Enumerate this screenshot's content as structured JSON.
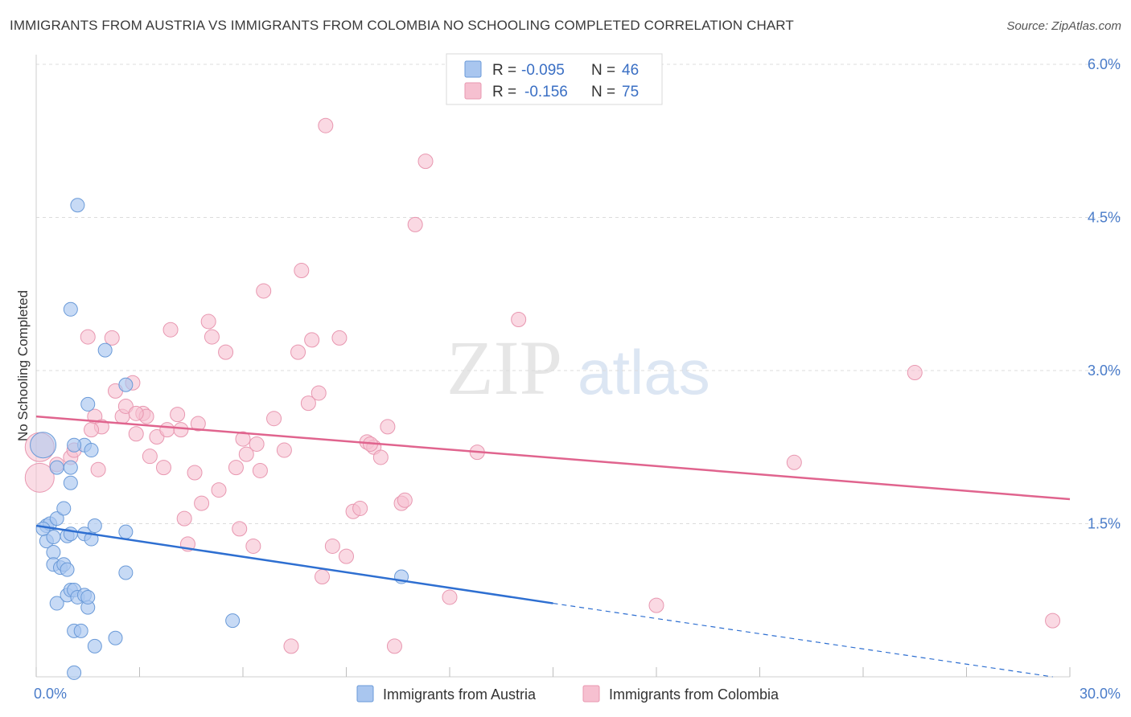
{
  "title": "IMMIGRANTS FROM AUSTRIA VS IMMIGRANTS FROM COLOMBIA NO SCHOOLING COMPLETED CORRELATION CHART",
  "source": "Source: ZipAtlas.com",
  "watermark": {
    "zip": "ZIP",
    "atlas": "atlas"
  },
  "colors": {
    "austria_fill": "#a9c6ef",
    "austria_stroke": "#6a9ad8",
    "austria_line": "#2e6fd1",
    "colombia_fill": "#f6c0d0",
    "colombia_stroke": "#e897b0",
    "colombia_line": "#e0648e",
    "axis_label": "#4a7cc9",
    "grid": "#dcdcdc"
  },
  "legend": {
    "r_label": "R =",
    "n_label": "N =",
    "austria": {
      "r": "-0.095",
      "n": "46"
    },
    "colombia": {
      "r": "-0.156",
      "n": "75"
    }
  },
  "chart_data": {
    "type": "scatter",
    "title": "IMMIGRANTS FROM AUSTRIA VS IMMIGRANTS FROM COLOMBIA NO SCHOOLING COMPLETED CORRELATION CHART",
    "xlabel": "",
    "ylabel": "No Schooling Completed",
    "xlim": [
      0,
      30
    ],
    "ylim": [
      0,
      6.0
    ],
    "x_tick_labels": [
      "0.0%",
      "30.0%"
    ],
    "y_ticks": [
      1.5,
      3.0,
      4.5,
      6.0
    ],
    "y_tick_labels": [
      "1.5%",
      "3.0%",
      "4.5%",
      "6.0%"
    ],
    "grid": true,
    "legend_position": "top-center",
    "series": [
      {
        "name": "Immigrants from Austria",
        "r": -0.095,
        "n": 46,
        "trend": {
          "x": [
            0,
            15
          ],
          "y": [
            1.48,
            0.72
          ],
          "dashed_to": [
            29.5,
            0.0
          ]
        },
        "points": [
          [
            0.2,
            2.27
          ],
          [
            0.3,
            1.48
          ],
          [
            0.4,
            1.5
          ],
          [
            0.3,
            1.33
          ],
          [
            0.5,
            1.37
          ],
          [
            0.5,
            1.22
          ],
          [
            0.6,
            1.55
          ],
          [
            0.5,
            1.1
          ],
          [
            0.7,
            1.07
          ],
          [
            0.8,
            1.1
          ],
          [
            0.6,
            0.72
          ],
          [
            0.9,
            0.8
          ],
          [
            0.9,
            1.05
          ],
          [
            1.0,
            0.85
          ],
          [
            1.1,
            0.85
          ],
          [
            1.2,
            0.78
          ],
          [
            1.4,
            0.8
          ],
          [
            1.5,
            0.68
          ],
          [
            1.5,
            0.78
          ],
          [
            1.1,
            0.45
          ],
          [
            1.3,
            0.45
          ],
          [
            1.7,
            0.3
          ],
          [
            2.3,
            0.38
          ],
          [
            1.1,
            0.04
          ],
          [
            0.8,
            1.65
          ],
          [
            0.9,
            1.38
          ],
          [
            1.0,
            1.4
          ],
          [
            1.4,
            1.4
          ],
          [
            1.6,
            1.35
          ],
          [
            1.7,
            1.48
          ],
          [
            2.6,
            1.42
          ],
          [
            2.6,
            1.02
          ],
          [
            1.0,
            1.9
          ],
          [
            1.4,
            2.27
          ],
          [
            1.1,
            2.27
          ],
          [
            1.0,
            2.05
          ],
          [
            1.5,
            2.67
          ],
          [
            2.6,
            2.86
          ],
          [
            2.0,
            3.2
          ],
          [
            1.0,
            3.6
          ],
          [
            1.2,
            4.62
          ],
          [
            5.7,
            0.55
          ],
          [
            10.6,
            0.98
          ],
          [
            0.6,
            2.05
          ],
          [
            0.2,
            1.45
          ],
          [
            1.6,
            2.22
          ]
        ]
      },
      {
        "name": "Immigrants from Colombia",
        "r": -0.156,
        "n": 75,
        "trend": {
          "x": [
            0,
            30
          ],
          "y": [
            2.55,
            1.74
          ]
        },
        "points": [
          [
            0.1,
            2.25
          ],
          [
            0.1,
            1.95
          ],
          [
            0.6,
            2.08
          ],
          [
            1.0,
            2.15
          ],
          [
            1.1,
            2.22
          ],
          [
            1.5,
            3.33
          ],
          [
            1.7,
            2.55
          ],
          [
            1.8,
            2.03
          ],
          [
            1.9,
            2.45
          ],
          [
            2.2,
            3.32
          ],
          [
            2.3,
            2.8
          ],
          [
            2.5,
            2.55
          ],
          [
            2.6,
            2.65
          ],
          [
            2.8,
            2.88
          ],
          [
            2.9,
            2.38
          ],
          [
            3.1,
            2.58
          ],
          [
            3.2,
            2.55
          ],
          [
            3.3,
            2.16
          ],
          [
            3.5,
            2.35
          ],
          [
            3.7,
            2.05
          ],
          [
            3.8,
            2.42
          ],
          [
            3.9,
            3.4
          ],
          [
            4.1,
            2.57
          ],
          [
            4.3,
            1.55
          ],
          [
            4.4,
            1.3
          ],
          [
            4.6,
            2.0
          ],
          [
            4.7,
            2.48
          ],
          [
            4.8,
            1.7
          ],
          [
            5.0,
            3.48
          ],
          [
            5.1,
            3.33
          ],
          [
            5.3,
            1.83
          ],
          [
            5.5,
            3.18
          ],
          [
            5.8,
            2.05
          ],
          [
            5.9,
            1.45
          ],
          [
            6.0,
            2.33
          ],
          [
            6.1,
            2.18
          ],
          [
            6.3,
            1.28
          ],
          [
            6.5,
            2.02
          ],
          [
            6.6,
            3.78
          ],
          [
            6.9,
            2.53
          ],
          [
            7.2,
            2.22
          ],
          [
            7.4,
            0.3
          ],
          [
            7.6,
            3.18
          ],
          [
            7.7,
            3.98
          ],
          [
            7.9,
            2.68
          ],
          [
            8.0,
            3.3
          ],
          [
            8.2,
            2.78
          ],
          [
            8.3,
            0.98
          ],
          [
            8.4,
            5.4
          ],
          [
            8.6,
            1.28
          ],
          [
            8.8,
            3.32
          ],
          [
            9.0,
            1.18
          ],
          [
            9.2,
            1.62
          ],
          [
            9.4,
            1.65
          ],
          [
            9.6,
            2.3
          ],
          [
            9.8,
            2.25
          ],
          [
            10.0,
            2.15
          ],
          [
            10.2,
            2.45
          ],
          [
            10.4,
            0.3
          ],
          [
            10.6,
            1.7
          ],
          [
            10.7,
            1.73
          ],
          [
            11.0,
            4.43
          ],
          [
            11.3,
            5.05
          ],
          [
            12.0,
            0.78
          ],
          [
            12.8,
            2.2
          ],
          [
            14.0,
            3.5
          ],
          [
            18.0,
            0.7
          ],
          [
            22.0,
            2.1
          ],
          [
            25.5,
            2.98
          ],
          [
            29.5,
            0.55
          ],
          [
            1.6,
            2.42
          ],
          [
            2.9,
            2.58
          ],
          [
            4.2,
            2.42
          ],
          [
            6.4,
            2.28
          ],
          [
            9.7,
            2.28
          ]
        ]
      }
    ]
  },
  "bottom_legend": {
    "austria_label": "Immigrants from Austria",
    "colombia_label": "Immigrants from Colombia"
  }
}
